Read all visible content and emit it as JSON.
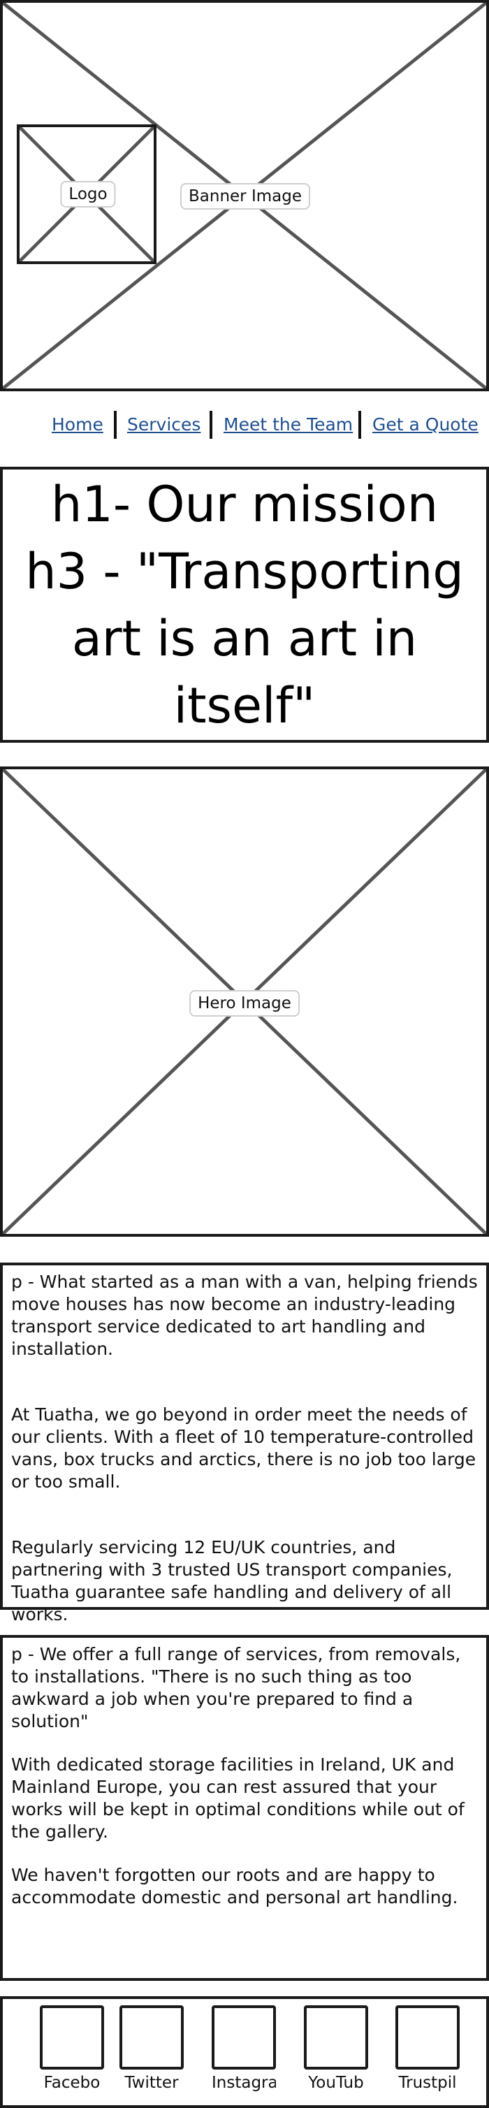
{
  "banner": {
    "logo_label": "Logo",
    "image_label": "Banner Image"
  },
  "nav": {
    "items": [
      "Home",
      "Services",
      "Meet the Team",
      "Get a Quote"
    ]
  },
  "mission": {
    "lines": [
      "h1- Our mission",
      "h3 - \"Transporting",
      "art is an art in",
      "itself\""
    ]
  },
  "hero": {
    "image_label": "Hero Image"
  },
  "about": {
    "paragraphs": [
      "p - What started as a man with a van, helping friends move houses has now become an industry-leading transport service dedicated to art handling and installation.",
      "At Tuatha, we go beyond in order meet the needs of our clients. With a fleet of 10 temperature-controlled vans, box trucks and arctics, there is no job too large or too small.",
      "Regularly servicing 12 EU/UK countries, and partnering with 3 trusted US transport companies, Tuatha guarantee safe handling and delivery of all works."
    ]
  },
  "services": {
    "paragraphs": [
      "p - We offer a full range of services, from removals, to installations. \"There is no such thing as too awkward a job when you're prepared to find a solution\"",
      "With dedicated storage facilities in Ireland, UK and Mainland Europe, you can rest assured that your works will be kept in optimal conditions while out of the gallery.",
      "We haven't forgotten our roots and are happy to accommodate domestic and personal art handling."
    ]
  },
  "footer": {
    "social": [
      "Facebo",
      "Twitter",
      "Instagra",
      "YouTub",
      "Trustpil"
    ]
  }
}
